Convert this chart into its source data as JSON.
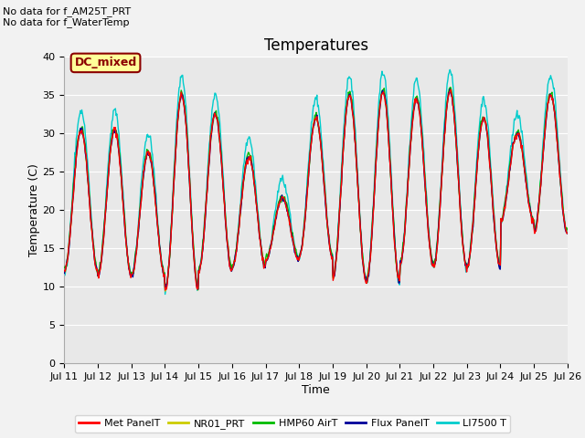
{
  "title": "Temperatures",
  "xlabel": "Time",
  "ylabel": "Temperature (C)",
  "ylim": [
    0,
    40
  ],
  "xlim": [
    0,
    15
  ],
  "x_tick_labels": [
    "Jul 11",
    "Jul 12",
    "Jul 13",
    "Jul 14",
    "Jul 15",
    "Jul 16",
    "Jul 17",
    "Jul 18",
    "Jul 19",
    "Jul 20",
    "Jul 21",
    "Jul 22",
    "Jul 23",
    "Jul 24",
    "Jul 25",
    "Jul 26"
  ],
  "annotation1": "No data for f_AM25T_PRT",
  "annotation2": "No data for f_WaterTemp",
  "legend_label": "DC_mixed",
  "legend_bg": "#FFFF99",
  "legend_border": "#8B0000",
  "plot_bg_color": "#E8E8E8",
  "fig_bg_color": "#F2F2F2",
  "series_labels": [
    "Met PanelT",
    "NR01_PRT",
    "HMP60 AirT",
    "Flux PanelT",
    "LI7500 T"
  ],
  "series_colors": [
    "#FF0000",
    "#CCCC00",
    "#00BB00",
    "#000099",
    "#00CCCC"
  ],
  "line_width": 1.0,
  "title_fontsize": 12,
  "label_fontsize": 9,
  "tick_fontsize": 8,
  "annot_fontsize": 8,
  "day_maxes": [
    30.5,
    30.5,
    27.5,
    35.0,
    32.5,
    27.0,
    21.5,
    32.0,
    35.0,
    35.5,
    34.5,
    35.5,
    32.0,
    30.0,
    35.0
  ],
  "day_mins": [
    12.0,
    11.5,
    11.5,
    9.5,
    12.0,
    12.5,
    13.5,
    14.0,
    11.0,
    10.5,
    13.0,
    12.5,
    12.5,
    18.5,
    17.0
  ]
}
